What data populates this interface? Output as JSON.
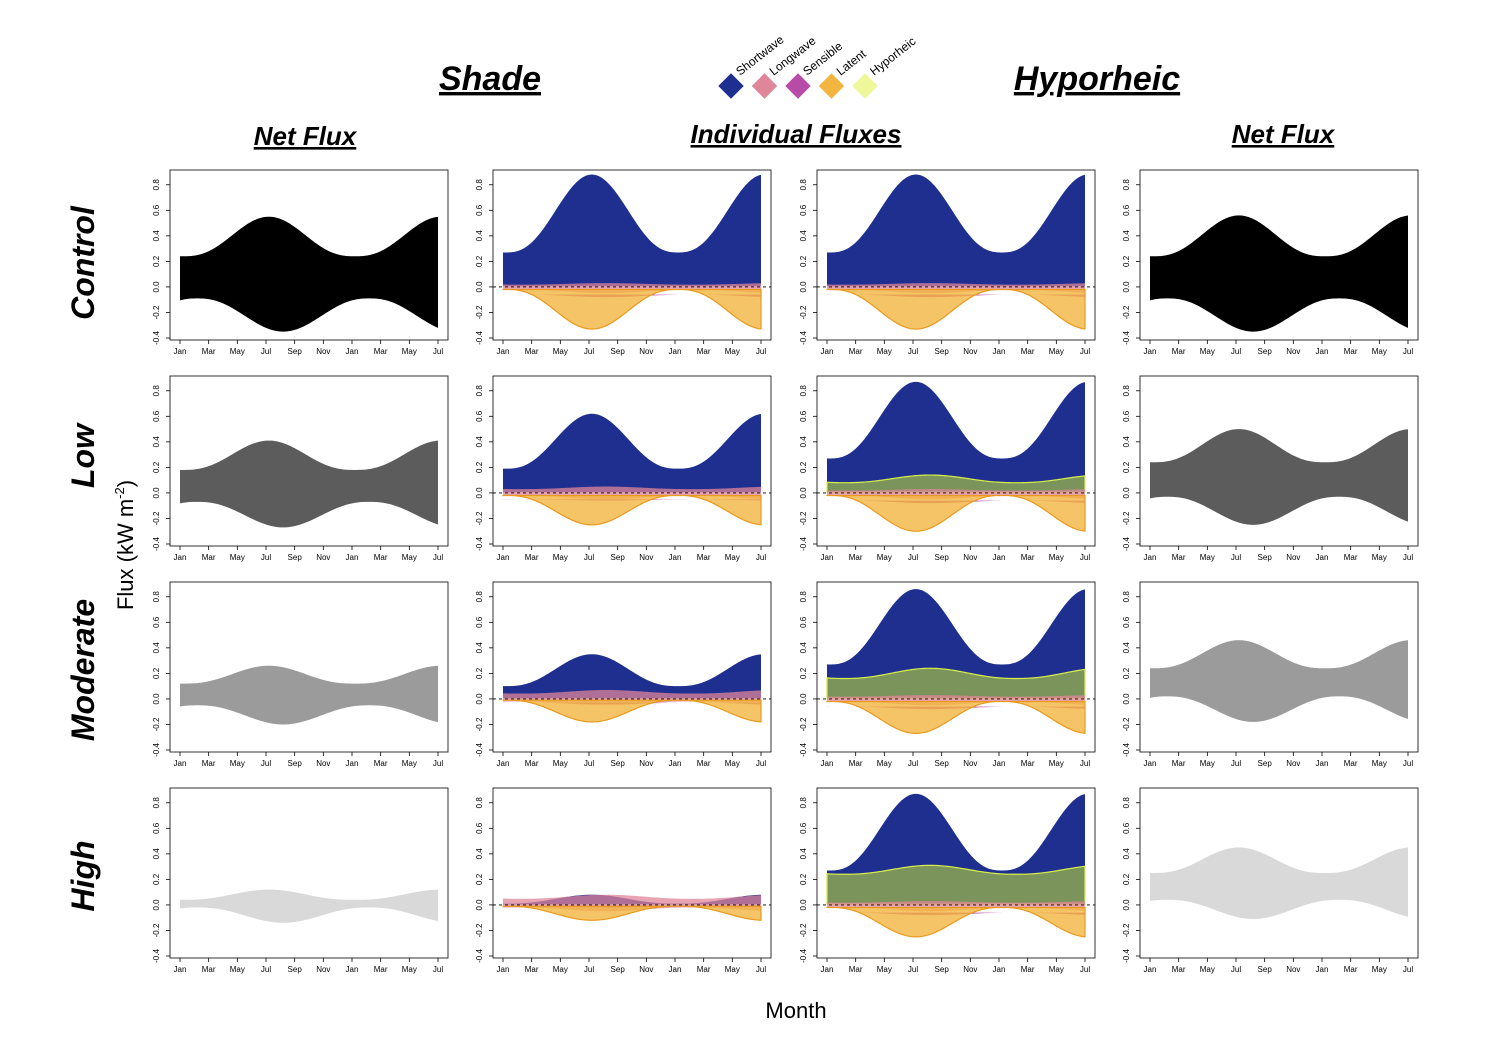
{
  "headers": {
    "shade": "Shade",
    "hyporheic": "Hyporheic",
    "net_flux_left": "Net Flux",
    "individual": "Individual Fluxes",
    "net_flux_right": "Net Flux"
  },
  "rows": [
    "Control",
    "Low",
    "Moderate",
    "High"
  ],
  "axes": {
    "xlabel": "Month",
    "ylabel": "Flux (kW m",
    "ylabel_sup": "-2",
    "ylabel_close": ")"
  },
  "legend": [
    {
      "name": "Shortwave",
      "color": "#1f2f8f"
    },
    {
      "name": "Longwave",
      "color": "#e0869a"
    },
    {
      "name": "Sensible",
      "color": "#b84aa8"
    },
    {
      "name": "Latent",
      "color": "#f2b540"
    },
    {
      "name": "Hyporheic",
      "color": "#eef79a"
    }
  ],
  "chart_data": {
    "type": "area",
    "x_ticks": [
      "Jan",
      "Mar",
      "May",
      "Jul",
      "Sep",
      "Nov",
      "Jan",
      "Mar",
      "May",
      "Jul"
    ],
    "y_ticks": [
      "0.8",
      "0.6",
      "0.4",
      "0.2",
      "0.0",
      "-0.2",
      "-0.4"
    ],
    "ylim": [
      -0.4,
      0.9
    ],
    "net_flux_colors": {
      "Control": "#000000",
      "Low": "#5c5c5c",
      "Moderate": "#9b9b9b",
      "High": "#d9d9d9"
    },
    "shade_net_flux": {
      "Control": {
        "max_high": 0.55,
        "max_low": 0.24,
        "min_low": -0.35,
        "min_high": -0.09
      },
      "Low": {
        "max_high": 0.41,
        "max_low": 0.18,
        "min_low": -0.27,
        "min_high": -0.07
      },
      "Moderate": {
        "max_high": 0.26,
        "max_low": 0.12,
        "min_low": -0.2,
        "min_high": -0.05
      },
      "High": {
        "max_high": 0.12,
        "max_low": 0.04,
        "min_low": -0.14,
        "min_high": -0.02
      }
    },
    "hyporheic_net_flux": {
      "Control": {
        "max_high": 0.56,
        "max_low": 0.24,
        "min_low": -0.35,
        "min_high": -0.09
      },
      "Low": {
        "max_high": 0.5,
        "max_low": 0.24,
        "min_low": -0.25,
        "min_high": -0.03
      },
      "Moderate": {
        "max_high": 0.46,
        "max_low": 0.24,
        "min_low": -0.18,
        "min_high": 0.02
      },
      "High": {
        "max_high": 0.45,
        "max_low": 0.25,
        "min_low": -0.11,
        "min_high": 0.04
      }
    },
    "shade_individual_peaks": {
      "Control": {
        "Shortwave": [
          0.27,
          0.88
        ],
        "Longwave": [
          0.03,
          0.03
        ],
        "Sensible": [
          -0.06,
          -0.08
        ],
        "Latent": [
          -0.02,
          -0.33
        ]
      },
      "Low": {
        "Shortwave": [
          0.19,
          0.62
        ],
        "Longwave": [
          0.03,
          0.05
        ],
        "Sensible": [
          -0.05,
          -0.06
        ],
        "Latent": [
          -0.02,
          -0.25
        ]
      },
      "Moderate": {
        "Shortwave": [
          0.1,
          0.35
        ],
        "Longwave": [
          0.05,
          0.07
        ],
        "Sensible": [
          -0.03,
          -0.04
        ],
        "Latent": [
          -0.01,
          -0.18
        ]
      },
      "High": {
        "Shortwave": [
          0.01,
          0.08
        ],
        "Longwave": [
          0.07,
          0.08
        ],
        "Sensible": [
          -0.01,
          -0.02
        ],
        "Latent": [
          -0.01,
          -0.12
        ]
      }
    },
    "hyporheic_individual_peaks": {
      "Control": {
        "Shortwave": [
          0.27,
          0.88
        ],
        "Longwave": [
          0.03,
          0.03
        ],
        "Sensible": [
          -0.06,
          -0.08
        ],
        "Latent": [
          -0.02,
          -0.33
        ],
        "Hyporheic": [
          0.0,
          0.0
        ]
      },
      "Low": {
        "Shortwave": [
          0.27,
          0.87
        ],
        "Longwave": [
          0.03,
          0.03
        ],
        "Sensible": [
          -0.06,
          -0.08
        ],
        "Latent": [
          -0.02,
          -0.3
        ],
        "Hyporheic": [
          0.08,
          0.14
        ]
      },
      "Moderate": {
        "Shortwave": [
          0.27,
          0.86
        ],
        "Longwave": [
          0.03,
          0.03
        ],
        "Sensible": [
          -0.06,
          -0.08
        ],
        "Latent": [
          -0.02,
          -0.27
        ],
        "Hyporheic": [
          0.16,
          0.24
        ]
      },
      "High": {
        "Shortwave": [
          0.27,
          0.87
        ],
        "Longwave": [
          0.03,
          0.03
        ],
        "Sensible": [
          -0.06,
          -0.08
        ],
        "Latent": [
          -0.02,
          -0.25
        ],
        "Hyporheic": [
          0.24,
          0.31
        ]
      }
    }
  }
}
